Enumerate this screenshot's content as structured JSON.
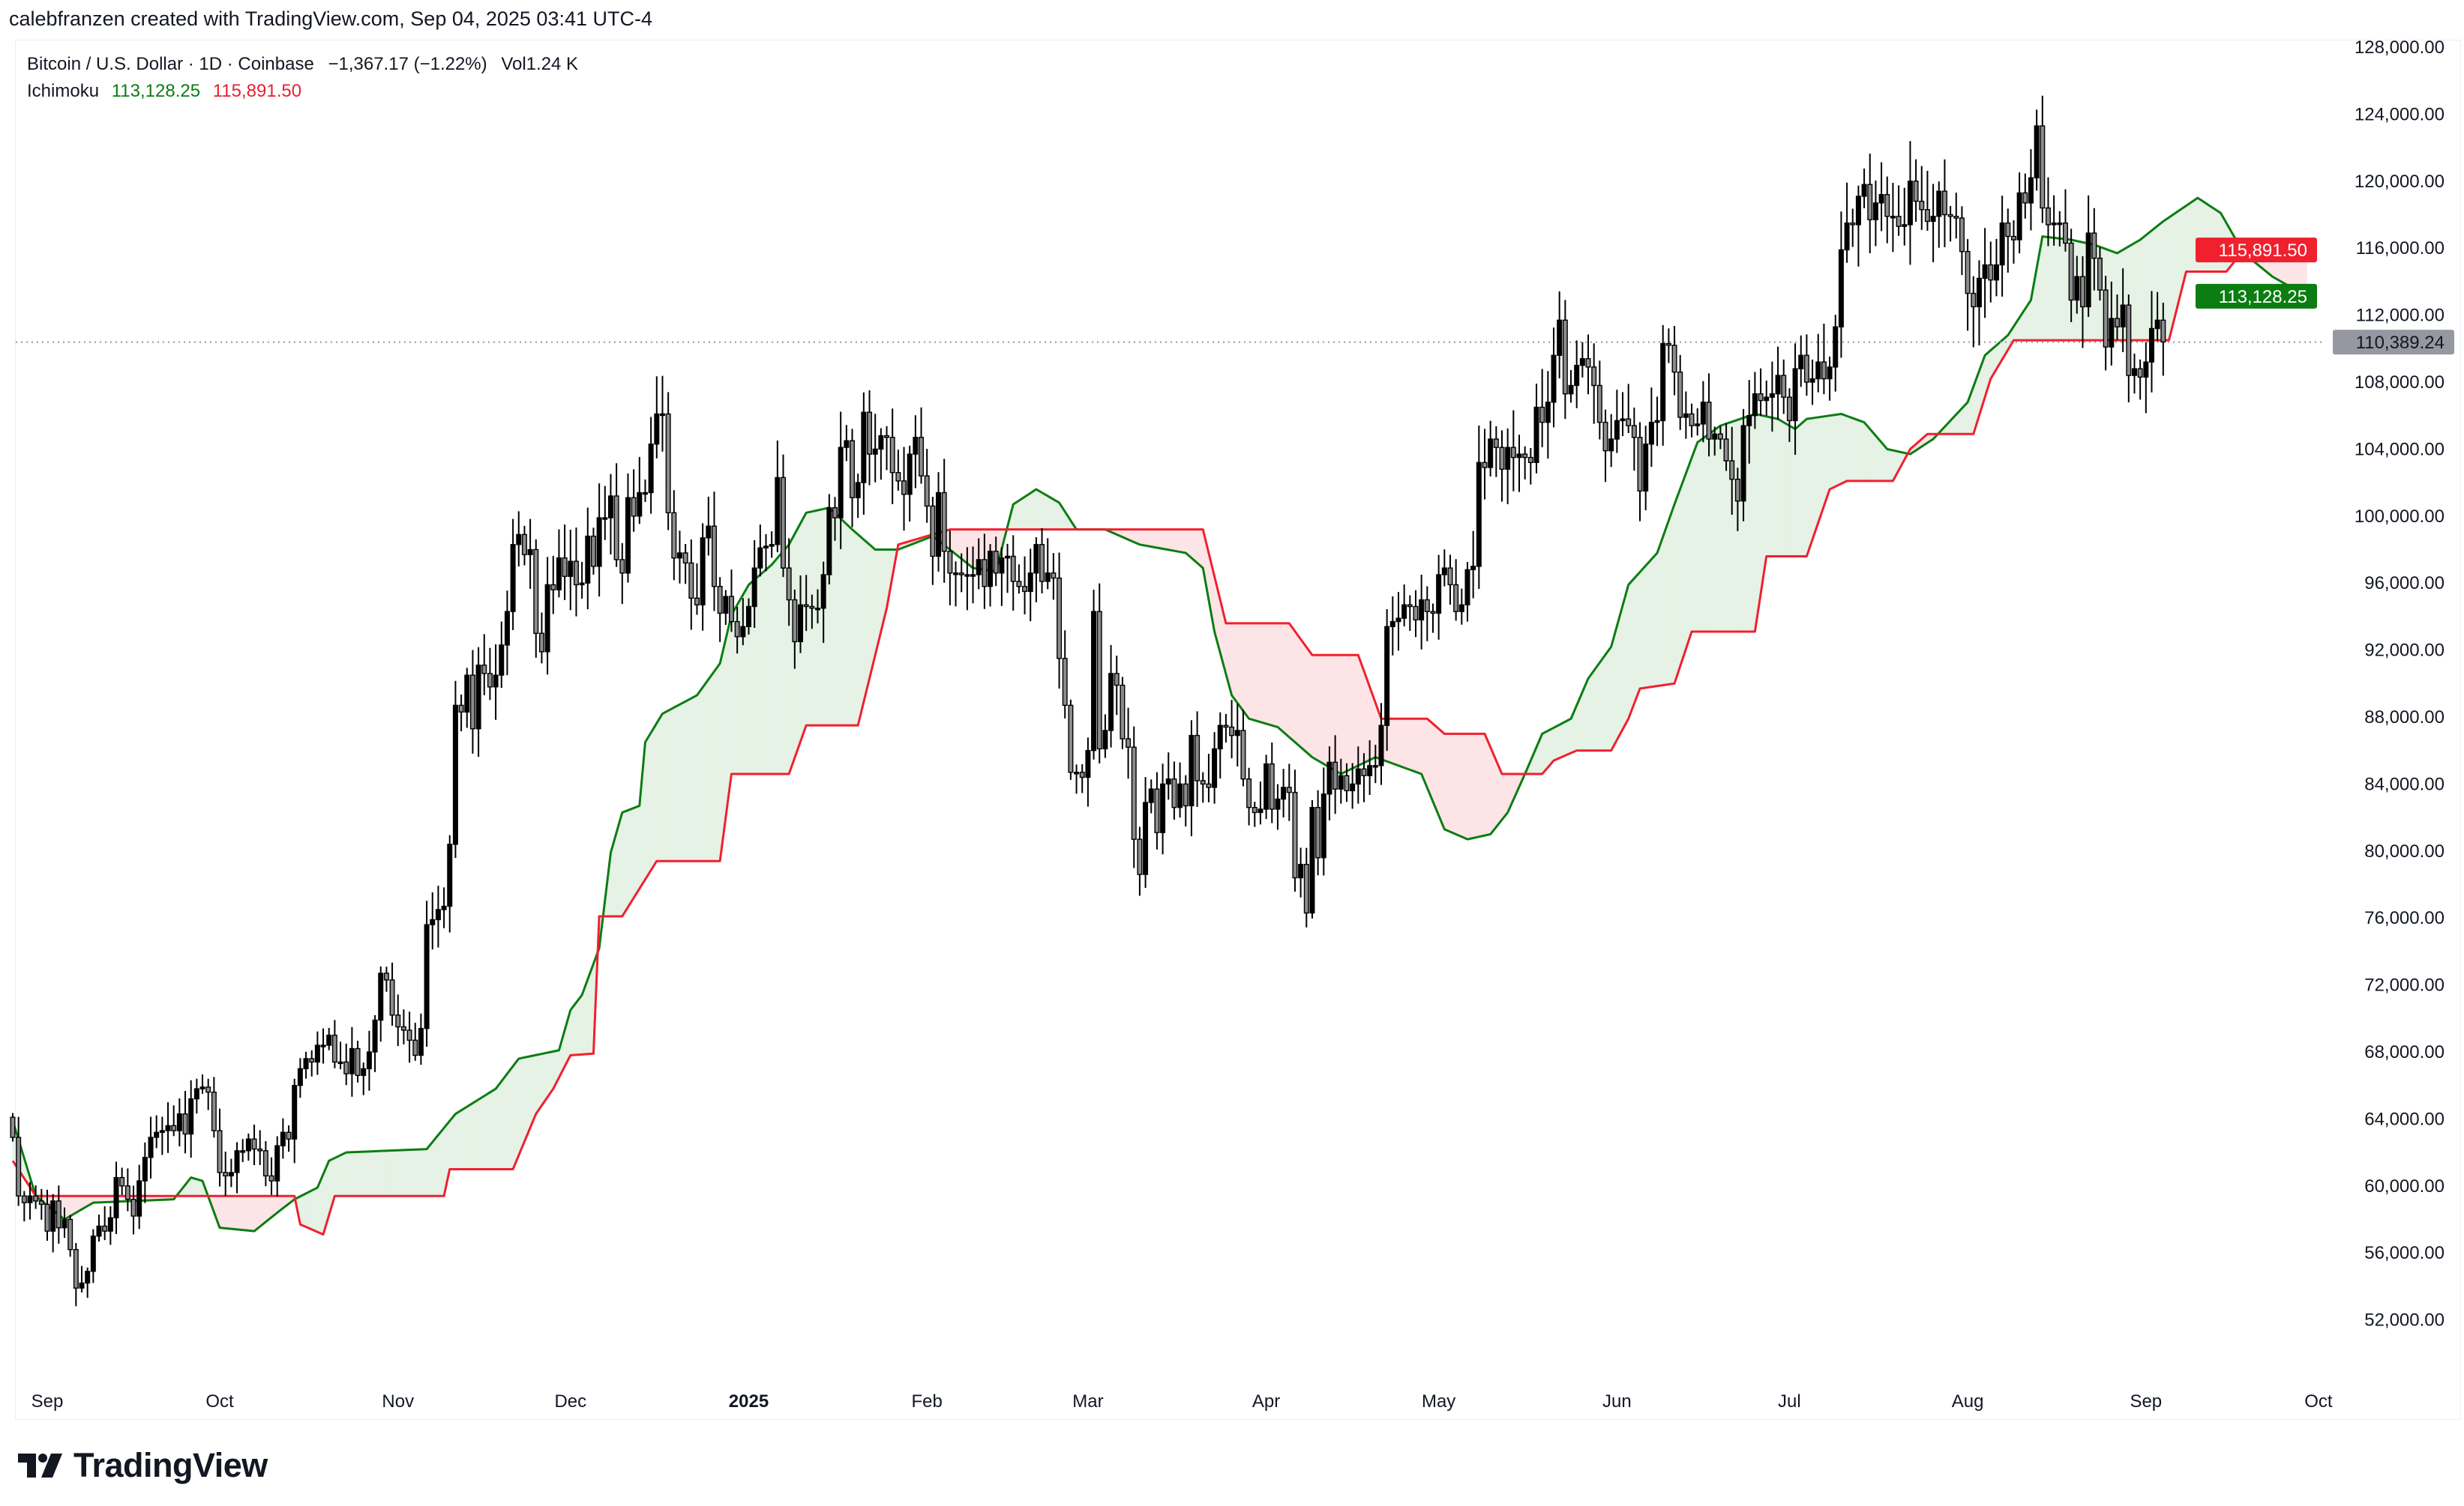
{
  "header": {
    "credit": "calebfranzen created with TradingView.com, Sep 04, 2025 03:41 UTC-4"
  },
  "legend": {
    "symbol": "Bitcoin / U.S. Dollar · 1D · Coinbase",
    "change": "−1,367.17 (−1.22%)",
    "volume": "Vol1.24 K",
    "indicator": "Ichimoku",
    "span_a_value": "113,128.25",
    "span_b_value": "115,891.50"
  },
  "price_labels": {
    "span_b": "115,891.50",
    "span_a": "113,128.25",
    "last": "110,389.24"
  },
  "colors": {
    "span_a": "#0b7d12",
    "span_b": "#f0202f",
    "cloud_up": "#e5f2e5",
    "cloud_down": "#fde4e6",
    "up_candle": "#000000",
    "down_candle": "#8c8c90",
    "last_price": "#9598a1"
  },
  "logo": {
    "text": "TradingView"
  },
  "chart_data": {
    "type": "candlestick",
    "title": "Bitcoin / U.S. Dollar · 1D · Coinbase",
    "x_start": "2024-08-26",
    "x_unit": "day index",
    "ylim": [
      48000,
      128000
    ],
    "y_unit": "USD (closes in thousands)",
    "y_ticks": [
      "128,000.00",
      "124,000.00",
      "120,000.00",
      "116,000.00",
      "112,000.00",
      "108,000.00",
      "104,000.00",
      "100,000.00",
      "96,000.00",
      "92,000.00",
      "88,000.00",
      "84,000.00",
      "80,000.00",
      "76,000.00",
      "72,000.00",
      "68,000.00",
      "64,000.00",
      "60,000.00",
      "56,000.00",
      "52,000.00"
    ],
    "y_tick_values": [
      128,
      124,
      120,
      116,
      112,
      108,
      104,
      100,
      96,
      92,
      88,
      84,
      80,
      76,
      72,
      68,
      64,
      60,
      56,
      52
    ],
    "x_ticks": [
      {
        "label": "Sep",
        "day": 6
      },
      {
        "label": "Oct",
        "day": 36
      },
      {
        "label": "Nov",
        "day": 67
      },
      {
        "label": "Dec",
        "day": 97
      },
      {
        "label": "2025",
        "day": 128,
        "bold": true
      },
      {
        "label": "Feb",
        "day": 159
      },
      {
        "label": "Mar",
        "day": 187
      },
      {
        "label": "Apr",
        "day": 218
      },
      {
        "label": "May",
        "day": 248
      },
      {
        "label": "Jun",
        "day": 279
      },
      {
        "label": "Jul",
        "day": 309
      },
      {
        "label": "Aug",
        "day": 340
      },
      {
        "label": "Sep",
        "day": 371
      },
      {
        "label": "Oct",
        "day": 401
      }
    ],
    "last_price": 110.38924,
    "closes": [
      62.9,
      59.4,
      59.0,
      59.4,
      59.1,
      58.9,
      57.3,
      59.1,
      57.5,
      58.0,
      56.2,
      53.9,
      54.2,
      54.9,
      57.0,
      57.6,
      57.3,
      58.1,
      60.5,
      60.0,
      59.2,
      58.2,
      60.3,
      61.7,
      62.9,
      63.2,
      63.3,
      63.6,
      63.3,
      64.3,
      63.1,
      65.2,
      65.8,
      65.9,
      65.6,
      63.3,
      60.8,
      60.6,
      60.8,
      62.1,
      62.1,
      62.8,
      62.2,
      62.1,
      60.6,
      60.3,
      62.4,
      63.2,
      62.8,
      66.0,
      67.0,
      67.6,
      67.4,
      68.4,
      68.4,
      69.0,
      67.4,
      67.4,
      66.7,
      68.2,
      66.6,
      67.0,
      68.0,
      69.9,
      72.7,
      72.3,
      70.2,
      69.5,
      69.3,
      68.7,
      67.8,
      69.4,
      75.6,
      75.9,
      76.5,
      76.7,
      80.4,
      88.7,
      88.3,
      90.5,
      87.3,
      91.1,
      90.6,
      89.8,
      90.5,
      92.3,
      94.3,
      98.3,
      98.9,
      97.7,
      98.0,
      93.0,
      91.9,
      95.9,
      95.6,
      97.5,
      96.4,
      97.3,
      95.9,
      96.0,
      98.8,
      97.0,
      99.9,
      99.9,
      101.2,
      97.4,
      96.6,
      101.1,
      100.0,
      101.4,
      101.4,
      104.3,
      106.1,
      106.1,
      100.2,
      97.5,
      97.8,
      97.2,
      95.1,
      94.7,
      98.7,
      99.4,
      95.8,
      94.2,
      95.2,
      93.7,
      92.8,
      93.4,
      94.6,
      96.9,
      98.1,
      98.2,
      98.3,
      102.3,
      96.9,
      95.0,
      92.5,
      94.7,
      94.6,
      94.5,
      94.5,
      96.5,
      100.5,
      99.9,
      104.1,
      104.5,
      101.1,
      102.0,
      106.2,
      103.7,
      104.0,
      104.8,
      104.7,
      102.6,
      102.1,
      101.3,
      103.7,
      104.7,
      102.4,
      100.6,
      97.6,
      101.4,
      97.9,
      96.6,
      96.6,
      96.5,
      96.5,
      96.5,
      97.4,
      95.8,
      97.9,
      96.6,
      97.5,
      97.6,
      96.1,
      95.8,
      95.5,
      96.6,
      98.3,
      96.1,
      96.6,
      96.3,
      91.5,
      88.7,
      84.7,
      84.7,
      84.4,
      86.0,
      94.3,
      86.1,
      87.2,
      90.6,
      89.9,
      86.7,
      86.2,
      80.7,
      78.6,
      82.9,
      83.7,
      81.1,
      84.0,
      84.3,
      82.6,
      84.0,
      82.7,
      86.9,
      84.2,
      84.0,
      83.8,
      86.1,
      87.5,
      87.4,
      86.9,
      87.2,
      84.3,
      82.6,
      82.3,
      82.5,
      85.2,
      82.5,
      83.1,
      83.8,
      83.5,
      78.4,
      79.2,
      76.3,
      82.6,
      79.6,
      83.4,
      85.3,
      83.7,
      84.5,
      83.6,
      84.0,
      84.9,
      84.5,
      85.1,
      85.1,
      87.5,
      93.4,
      93.7,
      93.9,
      94.7,
      94.6,
      93.8,
      95.0,
      94.3,
      94.2,
      96.5,
      96.9,
      95.9,
      94.3,
      94.7,
      96.8,
      97.0,
      103.2,
      102.9,
      104.6,
      104.1,
      102.8,
      104.1,
      103.5,
      103.7,
      103.5,
      103.2,
      106.5,
      105.6,
      106.8,
      109.6,
      111.7,
      107.3,
      107.8,
      109.0,
      109.4,
      108.9,
      107.8,
      105.6,
      103.9,
      104.6,
      105.7,
      105.8,
      105.4,
      104.7,
      101.5,
      104.3,
      105.6,
      105.7,
      110.3,
      110.2,
      108.6,
      105.9,
      106.1,
      105.4,
      105.5,
      106.8,
      104.6,
      104.9,
      104.6,
      103.3,
      102.2,
      100.9,
      105.4,
      106.0,
      107.3,
      106.9,
      107.1,
      107.3,
      108.4,
      107.1,
      105.7,
      108.8,
      109.6,
      108.0,
      108.2,
      109.2,
      108.2,
      108.9,
      111.3,
      115.9,
      117.5,
      117.4,
      119.1,
      119.8,
      117.7,
      118.7,
      119.2,
      117.9,
      117.9,
      117.3,
      117.4,
      120.0,
      118.8,
      118.3,
      117.6,
      117.9,
      119.4,
      118.0,
      117.9,
      117.8,
      115.8,
      113.3,
      112.5,
      114.2,
      115.0,
      114.1,
      115.0,
      117.5,
      116.7,
      116.5,
      119.3,
      118.7,
      120.2,
      123.3,
      118.4,
      117.4,
      117.5,
      117.5,
      116.3,
      112.9,
      114.3,
      112.5,
      116.9,
      115.4,
      113.5,
      110.1,
      111.8,
      111.3,
      112.6,
      108.4,
      108.8,
      108.3,
      109.2,
      111.2,
      111.7,
      110.4
    ],
    "series": [
      {
        "name": "Ichimoku Leading Span A",
        "points": [
          [
            0,
            63.9
          ],
          [
            4,
            59.4
          ],
          [
            9,
            58.0
          ],
          [
            14,
            59.0
          ],
          [
            28,
            59.2
          ],
          [
            31,
            60.5
          ],
          [
            33,
            60.3
          ],
          [
            36,
            57.5
          ],
          [
            42,
            57.3
          ],
          [
            46,
            58.4
          ],
          [
            49,
            59.2
          ],
          [
            53,
            59.9
          ],
          [
            55,
            61.5
          ],
          [
            58,
            62.0
          ],
          [
            72,
            62.2
          ],
          [
            77,
            64.3
          ],
          [
            84,
            65.8
          ],
          [
            88,
            67.6
          ],
          [
            95,
            68.1
          ],
          [
            97,
            70.5
          ],
          [
            99,
            71.4
          ],
          [
            102,
            74.2
          ],
          [
            104,
            79.9
          ],
          [
            106,
            82.3
          ],
          [
            109,
            82.7
          ],
          [
            110,
            86.5
          ],
          [
            113,
            88.2
          ],
          [
            119,
            89.3
          ],
          [
            123,
            91.2
          ],
          [
            125,
            94.1
          ],
          [
            128,
            95.9
          ],
          [
            132,
            97.1
          ],
          [
            135,
            98.3
          ],
          [
            138,
            100.2
          ],
          [
            142,
            100.5
          ],
          [
            146,
            99.2
          ],
          [
            150,
            98.0
          ],
          [
            154,
            98.0
          ],
          [
            160,
            98.8
          ],
          [
            163,
            98.0
          ],
          [
            167,
            96.9
          ],
          [
            171,
            96.7
          ],
          [
            174,
            100.7
          ],
          [
            178,
            101.6
          ],
          [
            182,
            100.8
          ],
          [
            185,
            99.2
          ],
          [
            190,
            99.2
          ],
          [
            196,
            98.3
          ],
          [
            204,
            97.8
          ],
          [
            207,
            96.9
          ],
          [
            209,
            93.1
          ],
          [
            212,
            89.3
          ],
          [
            215,
            87.9
          ],
          [
            220,
            87.4
          ],
          [
            226,
            85.6
          ],
          [
            231,
            84.6
          ],
          [
            237,
            85.6
          ],
          [
            245,
            84.6
          ],
          [
            249,
            81.3
          ],
          [
            253,
            80.7
          ],
          [
            257,
            81.0
          ],
          [
            260,
            82.3
          ],
          [
            263,
            84.6
          ],
          [
            266,
            87.0
          ],
          [
            271,
            87.9
          ],
          [
            274,
            90.3
          ],
          [
            278,
            92.2
          ],
          [
            281,
            95.9
          ],
          [
            286,
            97.8
          ],
          [
            289,
            100.7
          ],
          [
            293,
            104.4
          ],
          [
            297,
            105.4
          ],
          [
            303,
            106.1
          ],
          [
            307,
            105.8
          ],
          [
            310,
            105.2
          ],
          [
            312,
            105.8
          ],
          [
            318,
            106.1
          ],
          [
            322,
            105.6
          ],
          [
            326,
            104.0
          ],
          [
            330,
            103.7
          ],
          [
            334,
            104.6
          ],
          [
            340,
            106.8
          ],
          [
            343,
            109.6
          ],
          [
            347,
            110.8
          ],
          [
            351,
            112.9
          ],
          [
            353,
            116.7
          ],
          [
            358,
            116.5
          ],
          [
            362,
            116.2
          ],
          [
            366,
            115.7
          ],
          [
            370,
            116.5
          ],
          [
            374,
            117.6
          ],
          [
            380,
            119.0
          ],
          [
            384,
            118.1
          ],
          [
            388,
            115.7
          ],
          [
            393,
            114.3
          ],
          [
            399,
            113.128
          ]
        ]
      },
      {
        "name": "Ichimoku Leading Span B",
        "points": [
          [
            0,
            61.5
          ],
          [
            4,
            59.4
          ],
          [
            49,
            59.4
          ],
          [
            50,
            57.7
          ],
          [
            54,
            57.1
          ],
          [
            56,
            59.4
          ],
          [
            75,
            59.4
          ],
          [
            76,
            61.0
          ],
          [
            87,
            61.0
          ],
          [
            91,
            64.3
          ],
          [
            94,
            65.8
          ],
          [
            97,
            67.8
          ],
          [
            101,
            67.9
          ],
          [
            102,
            76.1
          ],
          [
            106,
            76.1
          ],
          [
            112,
            79.4
          ],
          [
            123,
            79.4
          ],
          [
            125,
            84.6
          ],
          [
            135,
            84.6
          ],
          [
            138,
            87.5
          ],
          [
            147,
            87.5
          ],
          [
            152,
            94.5
          ],
          [
            154,
            98.3
          ],
          [
            160,
            98.9
          ],
          [
            163,
            99.2
          ],
          [
            207,
            99.2
          ],
          [
            211,
            93.6
          ],
          [
            222,
            93.6
          ],
          [
            226,
            91.7
          ],
          [
            234,
            91.7
          ],
          [
            238,
            87.9
          ],
          [
            246,
            87.9
          ],
          [
            249,
            87.0
          ],
          [
            256,
            87.0
          ],
          [
            259,
            84.6
          ],
          [
            266,
            84.6
          ],
          [
            268,
            85.4
          ],
          [
            272,
            86.0
          ],
          [
            278,
            86.0
          ],
          [
            281,
            87.9
          ],
          [
            283,
            89.7
          ],
          [
            289,
            90.0
          ],
          [
            292,
            93.1
          ],
          [
            303,
            93.1
          ],
          [
            305,
            97.6
          ],
          [
            312,
            97.6
          ],
          [
            316,
            101.6
          ],
          [
            319,
            102.1
          ],
          [
            327,
            102.1
          ],
          [
            330,
            104.0
          ],
          [
            333,
            104.9
          ],
          [
            341,
            104.9
          ],
          [
            344,
            108.2
          ],
          [
            348,
            110.5
          ],
          [
            375,
            110.5
          ],
          [
            378,
            114.6
          ],
          [
            385,
            114.6
          ],
          [
            388,
            115.9
          ],
          [
            399,
            115.8915
          ]
        ]
      }
    ]
  }
}
